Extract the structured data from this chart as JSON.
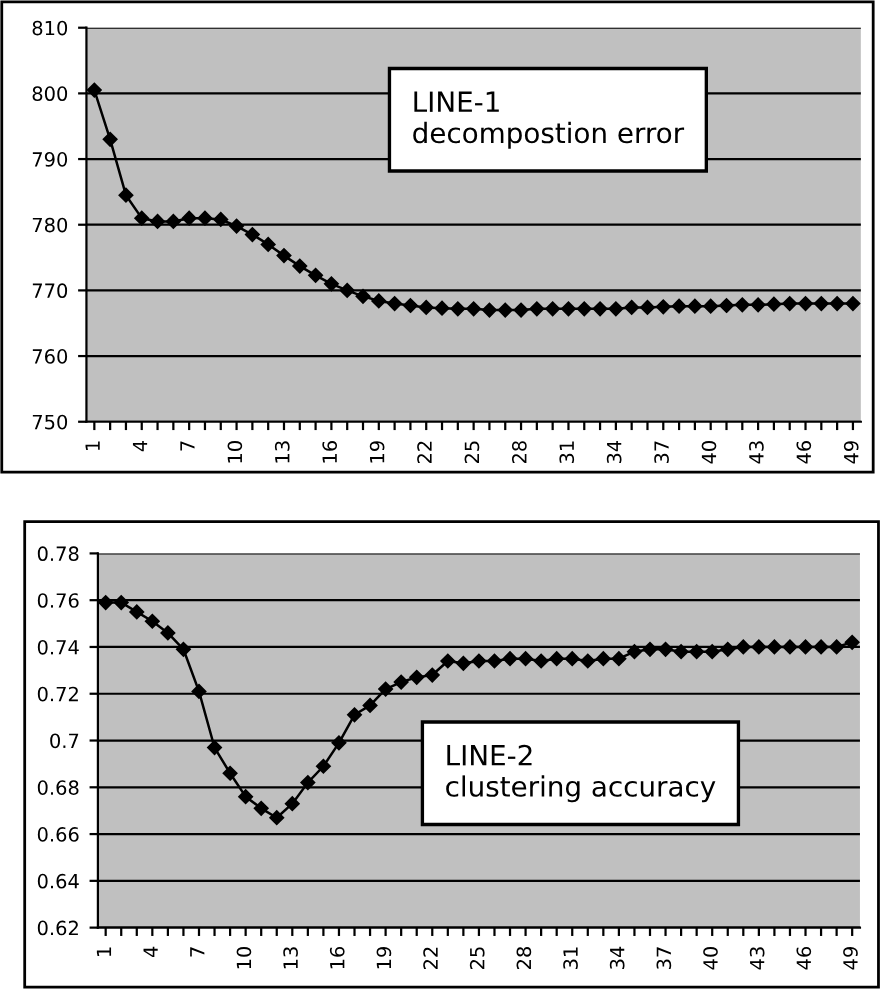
{
  "chart_data": [
    {
      "type": "line",
      "annotations": [
        "LINE-1\ndecompostion error"
      ],
      "categories": [
        "1",
        null,
        null,
        "4",
        null,
        null,
        "7",
        null,
        null,
        "10",
        null,
        null,
        "13",
        null,
        null,
        "16",
        null,
        null,
        "19",
        null,
        null,
        "22",
        null,
        null,
        "25",
        null,
        null,
        "28",
        null,
        null,
        "31",
        null,
        null,
        "34",
        null,
        null,
        "37",
        null,
        null,
        "40",
        null,
        null,
        "43",
        null,
        null,
        "46",
        null,
        null,
        "49"
      ],
      "series": [
        {
          "color": "#000000",
          "values": [
            800.5,
            793,
            784.5,
            781,
            780.5,
            780.5,
            781,
            781,
            780.8,
            779.8,
            778.5,
            777,
            775.3,
            773.7,
            772.3,
            771,
            770,
            769.1,
            768.4,
            768,
            767.7,
            767.4,
            767.3,
            767.2,
            767.2,
            767,
            767,
            767,
            767.2,
            767.2,
            767.2,
            767.2,
            767.2,
            767.2,
            767.4,
            767.4,
            767.5,
            767.6,
            767.6,
            767.6,
            767.7,
            767.8,
            767.8,
            767.9,
            768,
            768,
            768,
            768,
            768
          ]
        }
      ],
      "ylim": [
        750,
        810
      ],
      "yticks": [
        750,
        760,
        770,
        780,
        790,
        800,
        810
      ],
      "grid": "y",
      "marker": "diamond",
      "line_style": "solid"
    },
    {
      "type": "line",
      "annotations": [
        "LINE-2\nclustering accuracy"
      ],
      "categories": [
        "1",
        null,
        null,
        "4",
        null,
        null,
        "7",
        null,
        null,
        "10",
        null,
        null,
        "13",
        null,
        null,
        "16",
        null,
        null,
        "19",
        null,
        null,
        "22",
        null,
        null,
        "25",
        null,
        null,
        "28",
        null,
        null,
        "31",
        null,
        null,
        "34",
        null,
        null,
        "37",
        null,
        null,
        "40",
        null,
        null,
        "43",
        null,
        null,
        "46",
        null,
        null,
        "49"
      ],
      "series": [
        {
          "color": "#000000",
          "values": [
            0.759,
            0.759,
            0.755,
            0.751,
            0.746,
            0.739,
            0.721,
            0.697,
            0.686,
            0.676,
            0.671,
            0.667,
            0.673,
            0.682,
            0.689,
            0.699,
            0.711,
            0.715,
            0.722,
            0.725,
            0.727,
            0.728,
            0.734,
            0.733,
            0.734,
            0.734,
            0.735,
            0.735,
            0.734,
            0.735,
            0.735,
            0.734,
            0.735,
            0.735,
            0.738,
            0.739,
            0.739,
            0.738,
            0.738,
            0.738,
            0.739,
            0.74,
            0.74,
            0.74,
            0.74,
            0.74,
            0.74,
            0.74,
            0.742
          ]
        }
      ],
      "ylim": [
        0.62,
        0.78
      ],
      "yticks": [
        0.62,
        0.64,
        0.66,
        0.68,
        0.7,
        0.72,
        0.74,
        0.76,
        0.78
      ],
      "grid": "y",
      "marker": "diamond",
      "line_style": "solid"
    }
  ]
}
